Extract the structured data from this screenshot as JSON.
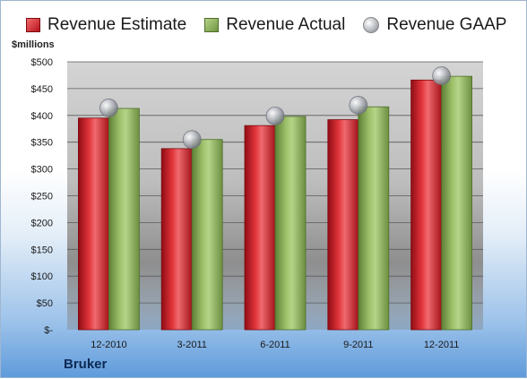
{
  "company": "Bruker",
  "chart_data": {
    "type": "bar",
    "ylabel": "$millions",
    "categories": [
      "12-2010",
      "3-2011",
      "6-2011",
      "9-2011",
      "12-2011"
    ],
    "series": [
      {
        "name": "Revenue Estimate",
        "values": [
          395,
          338,
          381,
          392,
          466
        ],
        "color": "#c81e25"
      },
      {
        "name": "Revenue Actual",
        "values": [
          413,
          355,
          398,
          416,
          473
        ],
        "color": "#8ab05a"
      },
      {
        "name": "Revenue GAAP",
        "values": [
          414,
          355,
          399,
          419,
          474
        ],
        "color": "#b9bcc2"
      }
    ],
    "yticks": [
      "$-",
      "$50",
      "$100",
      "$150",
      "$200",
      "$250",
      "$300",
      "$350",
      "$400",
      "$450",
      "$500"
    ],
    "ylim": [
      0,
      500
    ],
    "grid": true,
    "legend": "top"
  }
}
